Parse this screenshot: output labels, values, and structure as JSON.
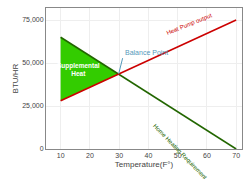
{
  "chart_data": {
    "type": "line",
    "xlabel": "Temperature(F°)",
    "ylabel": "BTU/HR",
    "xlim": [
      5,
      72
    ],
    "ylim": [
      0,
      82000
    ],
    "xticks": [
      10,
      20,
      30,
      40,
      50,
      60,
      70
    ],
    "yticks": [
      0,
      {
        "value": 25000,
        "label": "25,000"
      },
      {
        "value": 50000,
        "label": "50,000"
      },
      {
        "value": 75000,
        "label": "75,000"
      }
    ],
    "grid": true,
    "series": [
      {
        "type": "area",
        "color": "#33cc00",
        "x": [
          10,
          29.821428571428573,
          10
        ],
        "values": [
          65000,
          43526.78571428571,
          28000
        ]
      },
      {
        "type": "line",
        "color": "#226600",
        "x": [
          10,
          70
        ],
        "values": [
          65000,
          0
        ]
      },
      {
        "type": "line",
        "color": "#cc0000",
        "x": [
          10,
          70
        ],
        "values": [
          28000,
          75000
        ]
      }
    ],
    "annotations": [
      {
        "text": "Balance Point",
        "x": 29.821428571428573,
        "y": 43526.78571428571,
        "color": "#5599bb"
      },
      {
        "text": "Supplemental\nHeat",
        "x": 16,
        "y": 46000,
        "color": "#ffffff"
      },
      {
        "text": "Heat Pump output",
        "x": 54,
        "y": 64000,
        "color": "#cc0000"
      },
      {
        "text": "Home Heating Requirement",
        "x": 51,
        "y": 17000,
        "color": "#226600"
      }
    ]
  }
}
